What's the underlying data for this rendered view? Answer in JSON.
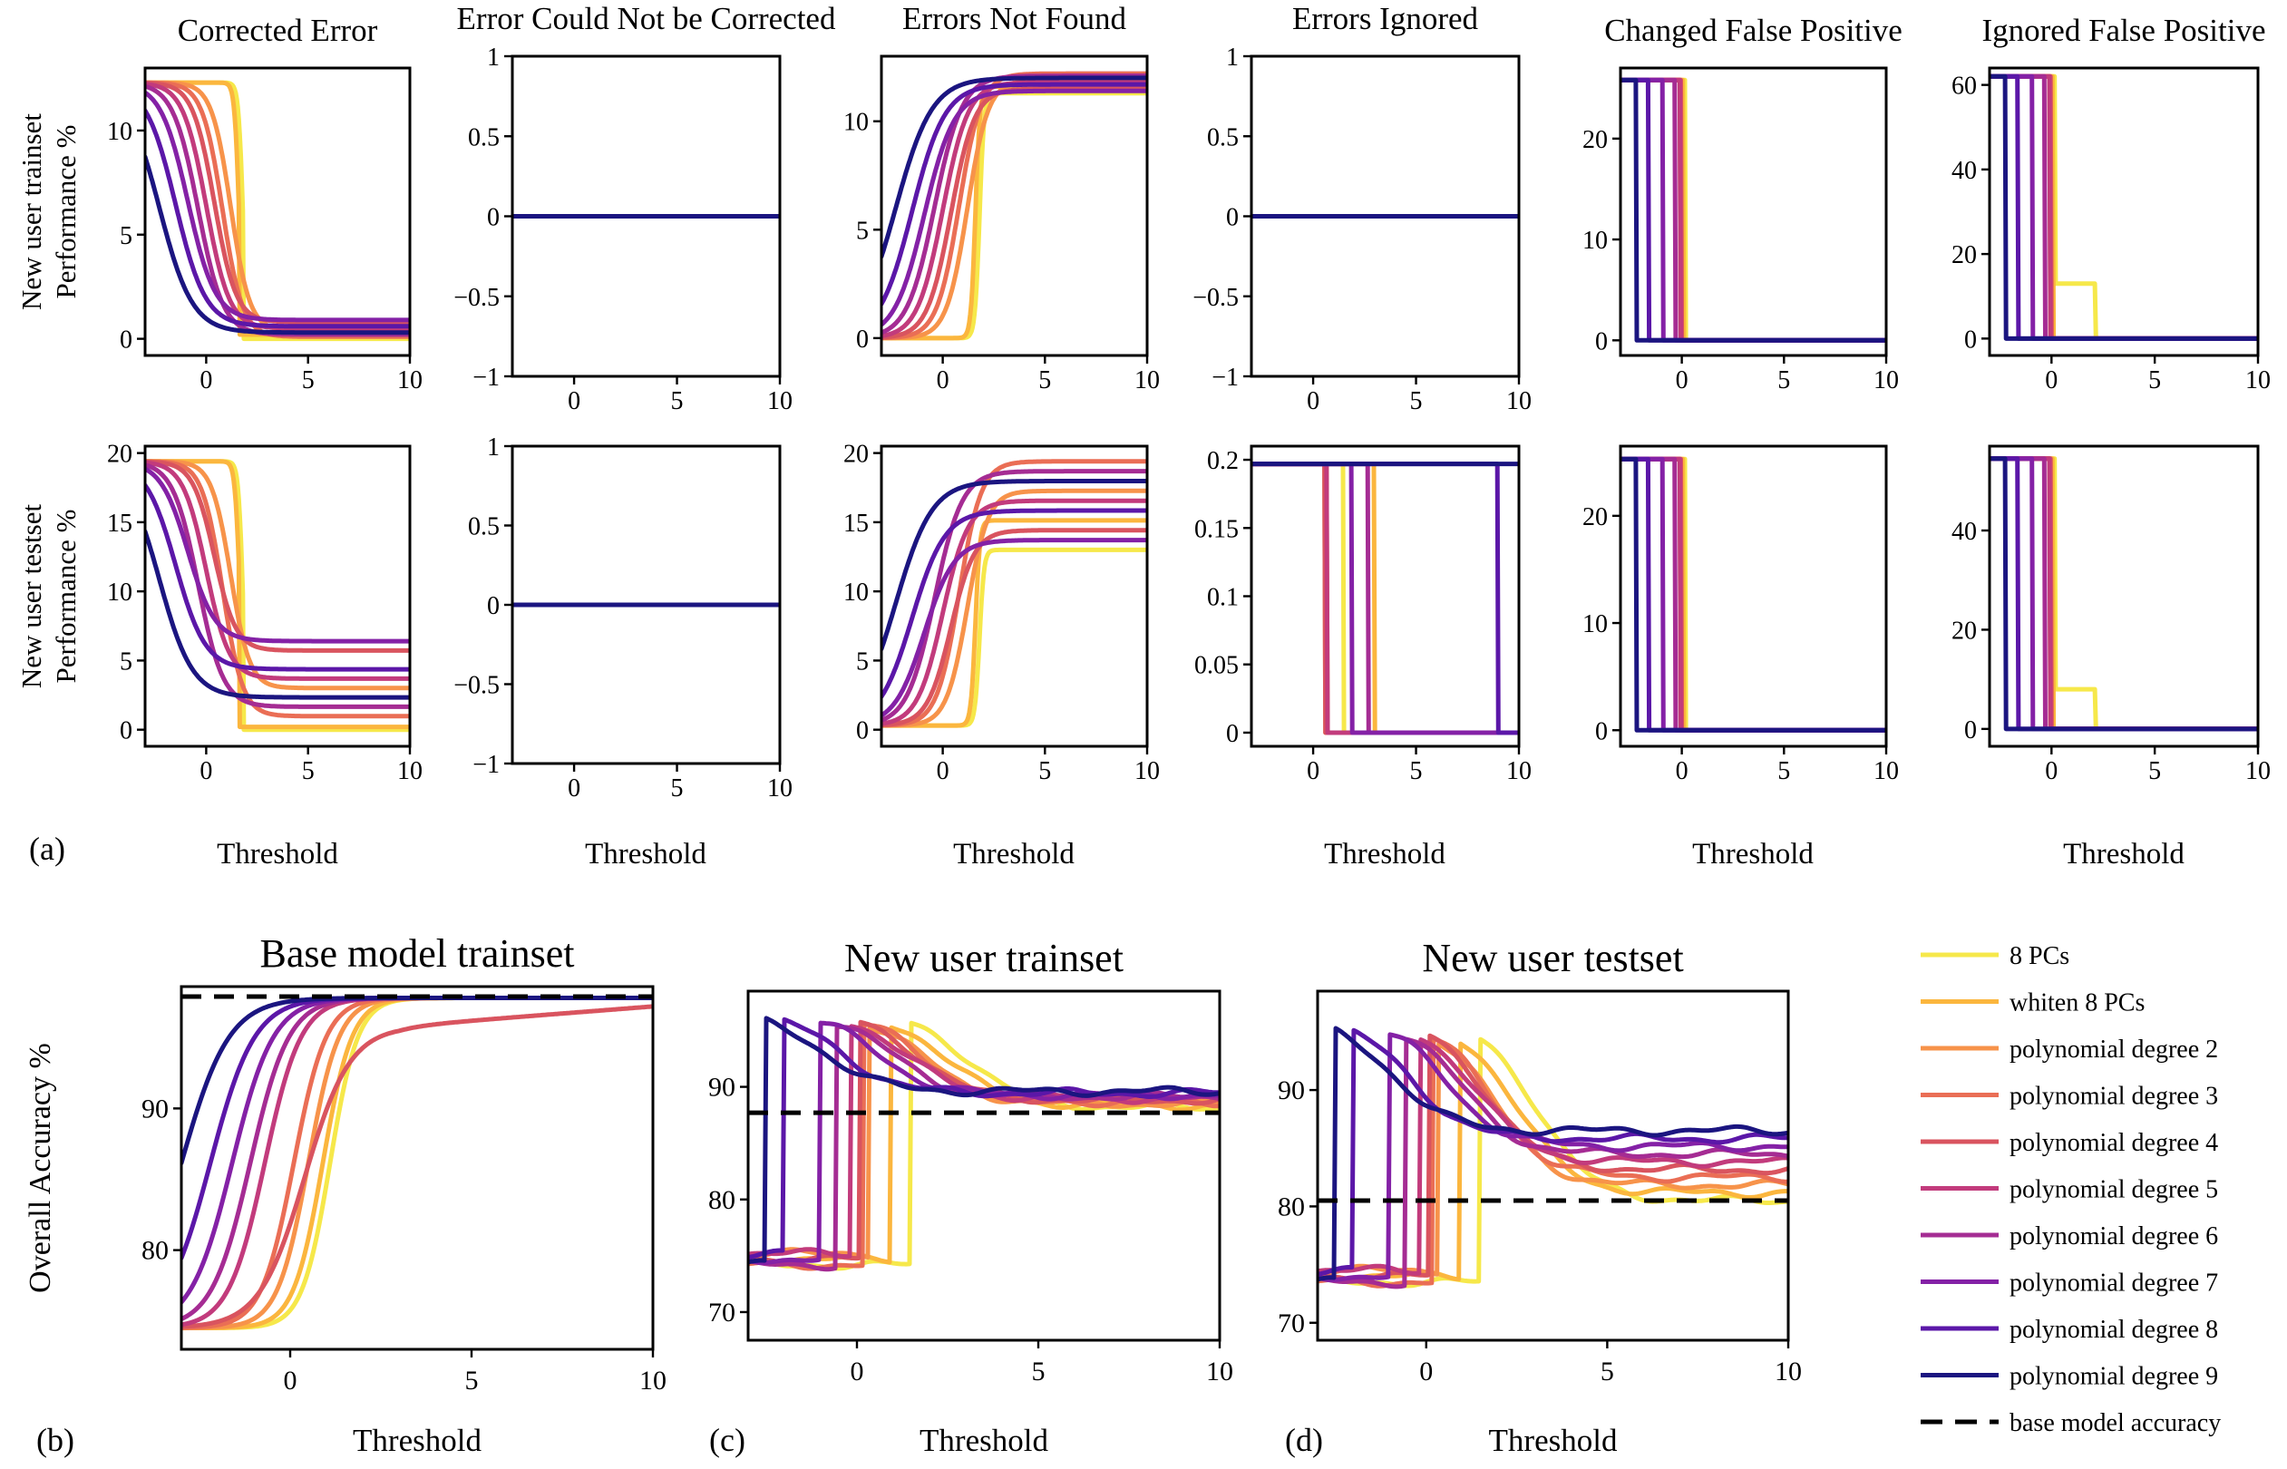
{
  "figure": {
    "panel_labels": [
      "(a)",
      "(b)",
      "(c)",
      "(d)"
    ]
  },
  "colors": {
    "8 PCs": "#f6e84a",
    "whiten 8 PCs": "#fbb63e",
    "polynomial degree 2": "#f7934a",
    "polynomial degree 3": "#ea6e55",
    "polynomial degree 4": "#d9545f",
    "polynomial degree 5": "#c23b7c",
    "polynomial degree 6": "#a52c93",
    "polynomial degree 7": "#8421a6",
    "polynomial degree 8": "#5b17a8",
    "polynomial degree 9": "#1b1580",
    "base": "#000000"
  },
  "legend": {
    "entries": [
      {
        "label": "8 PCs",
        "style": "solid"
      },
      {
        "label": "whiten 8 PCs",
        "style": "solid"
      },
      {
        "label": "polynomial degree 2",
        "style": "solid"
      },
      {
        "label": "polynomial degree 3",
        "style": "solid"
      },
      {
        "label": "polynomial degree 4",
        "style": "solid"
      },
      {
        "label": "polynomial degree 5",
        "style": "solid"
      },
      {
        "label": "polynomial degree 6",
        "style": "solid"
      },
      {
        "label": "polynomial degree 7",
        "style": "solid"
      },
      {
        "label": "polynomial degree 8",
        "style": "solid"
      },
      {
        "label": "polynomial degree 9",
        "style": "solid"
      },
      {
        "label": "base model accuracy",
        "style": "dashed"
      }
    ]
  },
  "chart_data": [
    {
      "id": "a-r1-c1",
      "type": "line",
      "panel": "(a)",
      "row": "New user trainset",
      "title": "Corrected Error",
      "ylabel": "New user trainset\nPerformance %",
      "xlabel": "",
      "xlim": [
        -3,
        10
      ],
      "ylim": [
        -0.8,
        13
      ],
      "xticks": [
        0,
        5,
        10
      ],
      "yticks": [
        0,
        5,
        10
      ],
      "template": "decreasing",
      "params": {
        "hi": 12.3,
        "lo": 0.3,
        "range_lo": 0.0,
        "range_hi": 0.9
      }
    },
    {
      "id": "a-r1-c2",
      "type": "line",
      "panel": "(a)",
      "row": "New user trainset",
      "title": "Error Could Not be Corrected",
      "xlim": [
        -3,
        10
      ],
      "ylim": [
        -1,
        1
      ],
      "xticks": [
        0,
        5,
        10
      ],
      "yticks": [
        -1,
        -0.5,
        0,
        0.5,
        1
      ],
      "ytick_labels": [
        "−1",
        "−0.5",
        "0",
        "0.5",
        "1"
      ],
      "template": "flat",
      "params": {
        "value": 0
      }
    },
    {
      "id": "a-r1-c3",
      "type": "line",
      "panel": "(a)",
      "row": "New user trainset",
      "title": "Errors Not Found",
      "xlim": [
        -3,
        10
      ],
      "ylim": [
        -0.8,
        13
      ],
      "xticks": [
        0,
        5,
        10
      ],
      "yticks": [
        0,
        5,
        10
      ],
      "template": "increasing",
      "params": {
        "lo": 0,
        "hi": 12.2,
        "range_lo": 11.3,
        "range_hi": 12.2
      }
    },
    {
      "id": "a-r1-c4",
      "type": "line",
      "panel": "(a)",
      "row": "New user trainset",
      "title": "Errors Ignored",
      "xlim": [
        -3,
        10
      ],
      "ylim": [
        -1,
        1
      ],
      "xticks": [
        0,
        5,
        10
      ],
      "yticks": [
        -1,
        -0.5,
        0,
        0.5,
        1
      ],
      "ytick_labels": [
        "−1",
        "−0.5",
        "0",
        "0.5",
        "1"
      ],
      "template": "flat",
      "params": {
        "value": 0
      }
    },
    {
      "id": "a-r1-c5",
      "type": "line",
      "panel": "(a)",
      "row": "New user trainset",
      "title": "Changed False Positive",
      "xlim": [
        -3,
        10
      ],
      "ylim": [
        -1.5,
        27
      ],
      "xticks": [
        0,
        5,
        10
      ],
      "yticks": [
        0,
        10,
        20
      ],
      "template": "drop",
      "params": {
        "hi": 25.8
      }
    },
    {
      "id": "a-r1-c6",
      "type": "line",
      "panel": "(a)",
      "row": "New user trainset",
      "title": "Ignored False Positive",
      "xlim": [
        -3,
        10
      ],
      "ylim": [
        -4,
        64
      ],
      "xticks": [
        0,
        5,
        10
      ],
      "yticks": [
        0,
        20,
        40,
        60
      ],
      "template": "drop",
      "params": {
        "hi": 62,
        "tail_8pc": 13
      }
    },
    {
      "id": "a-r2-c1",
      "type": "line",
      "panel": "(a)",
      "row": "New user testset",
      "title": "",
      "ylabel": "New user testset\nPerformance %",
      "xlim": [
        -3,
        10
      ],
      "ylim": [
        -1.2,
        20.5
      ],
      "xticks": [
        0,
        5,
        10
      ],
      "yticks": [
        0,
        5,
        10,
        15,
        20
      ],
      "template": "decreasing",
      "params": {
        "hi": 19.4,
        "lo": 0,
        "range_lo": 0.3,
        "range_hi": 6.4
      }
    },
    {
      "id": "a-r2-c2",
      "type": "line",
      "panel": "(a)",
      "row": "New user testset",
      "title": "",
      "xlim": [
        -3,
        10
      ],
      "ylim": [
        -1,
        1
      ],
      "xticks": [
        0,
        5,
        10
      ],
      "yticks": [
        -1,
        -0.5,
        0,
        0.5,
        1
      ],
      "ytick_labels": [
        "−1",
        "−0.5",
        "0",
        "0.5",
        "1"
      ],
      "template": "flat",
      "params": {
        "value": 0
      }
    },
    {
      "id": "a-r2-c3",
      "type": "line",
      "panel": "(a)",
      "row": "New user testset",
      "title": "",
      "xlim": [
        -3,
        10
      ],
      "ylim": [
        -1.2,
        20.5
      ],
      "xticks": [
        0,
        5,
        10
      ],
      "yticks": [
        0,
        5,
        10,
        15,
        20
      ],
      "template": "increasing",
      "params": {
        "lo": 0.3,
        "hi": 19.7,
        "range_lo": 13,
        "range_hi": 19.4
      }
    },
    {
      "id": "a-r2-c4",
      "type": "line",
      "panel": "(a)",
      "row": "New user testset",
      "title": "",
      "xlim": [
        -3,
        10
      ],
      "ylim": [
        -0.01,
        0.21
      ],
      "xticks": [
        0,
        5,
        10
      ],
      "yticks": [
        0,
        0.05,
        0.1,
        0.15,
        0.2
      ],
      "template": "spikes",
      "params": {
        "hi": 0.197
      }
    },
    {
      "id": "a-r2-c5",
      "type": "line",
      "panel": "(a)",
      "row": "New user testset",
      "title": "",
      "xlim": [
        -3,
        10
      ],
      "ylim": [
        -1.5,
        26.5
      ],
      "xticks": [
        0,
        5,
        10
      ],
      "yticks": [
        0,
        10,
        20
      ],
      "template": "drop",
      "params": {
        "hi": 25.3
      }
    },
    {
      "id": "a-r2-c6",
      "type": "line",
      "panel": "(a)",
      "row": "New user testset",
      "title": "",
      "xlim": [
        -3,
        10
      ],
      "ylim": [
        -3.5,
        57
      ],
      "xticks": [
        0,
        5,
        10
      ],
      "yticks": [
        0,
        20,
        40
      ],
      "template": "drop",
      "params": {
        "hi": 54.5,
        "tail_8pc": 8
      }
    },
    {
      "id": "b",
      "type": "line",
      "panel": "(b)",
      "title": "Base model trainset",
      "ylabel": "Overall Accuracy %",
      "xlabel": "Threshold",
      "xlim": [
        -3,
        10
      ],
      "ylim": [
        73,
        98.6
      ],
      "xticks": [
        0,
        5,
        10
      ],
      "yticks": [
        80,
        90
      ],
      "template": "rise",
      "params": {
        "lo": 74.5,
        "hi": 97.8
      },
      "baseline": 97.9
    },
    {
      "id": "c",
      "type": "line",
      "panel": "(c)",
      "title": "New user trainset",
      "xlabel": "Threshold",
      "xlim": [
        -3,
        10
      ],
      "ylim": [
        67.5,
        98.5
      ],
      "xticks": [
        0,
        5,
        10
      ],
      "yticks": [
        70,
        80,
        90
      ],
      "template": "spikefall",
      "params": {
        "low": 74.2,
        "peak": 96.5,
        "final": 88.2
      },
      "baseline": 87.7
    },
    {
      "id": "d",
      "type": "line",
      "panel": "(d)",
      "title": "New user testset",
      "xlabel": "Threshold",
      "xlim": [
        -3,
        10
      ],
      "ylim": [
        68.5,
        98.5
      ],
      "xticks": [
        0,
        5,
        10
      ],
      "yticks": [
        70,
        80,
        90
      ],
      "template": "spikefall",
      "params": {
        "low": 73.5,
        "peak": 96,
        "final": 80.5,
        "spread": 6
      },
      "baseline": 80.5
    }
  ]
}
